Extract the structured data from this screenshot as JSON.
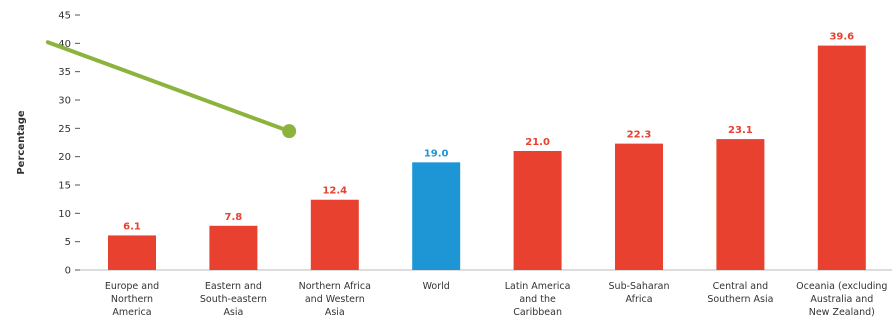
{
  "chart_data": {
    "type": "bar",
    "ylabel": "Percentage",
    "ylim": [
      0,
      45
    ],
    "yticks": [
      0,
      5,
      10,
      15,
      20,
      25,
      30,
      35,
      40,
      45
    ],
    "grid": false,
    "legend": "none",
    "categories": [
      [
        "Europe and",
        "Northern",
        "America"
      ],
      [
        "Eastern and",
        "South-eastern",
        "Asia"
      ],
      [
        "Northern Africa",
        "and Western",
        "Asia"
      ],
      [
        "World"
      ],
      [
        "Latin America",
        "and the",
        "Caribbean"
      ],
      [
        "Sub-Saharan",
        "Africa"
      ],
      [
        "Central and",
        "Southern Asia"
      ],
      [
        "Oceania (excluding",
        "Australia and",
        "New Zealand)"
      ]
    ],
    "values": [
      6.1,
      7.8,
      12.4,
      19.0,
      21.0,
      22.3,
      23.1,
      39.6
    ],
    "value_labels": [
      "6.1",
      "7.8",
      "12.4",
      "19.0",
      "21.0",
      "22.3",
      "23.1",
      "39.6"
    ],
    "highlight_index": 3,
    "colors": {
      "bar": "#e8412f",
      "highlight": "#1e96d6",
      "label": "#e8412f",
      "highlight_label": "#1e96d6",
      "annotation": "#8cb43c"
    },
    "annotation": {
      "type": "arrow-line",
      "note": "green line with round end marker",
      "from": [
        -0.83,
        40.2
      ],
      "to": [
        1.55,
        24.5
      ]
    }
  }
}
